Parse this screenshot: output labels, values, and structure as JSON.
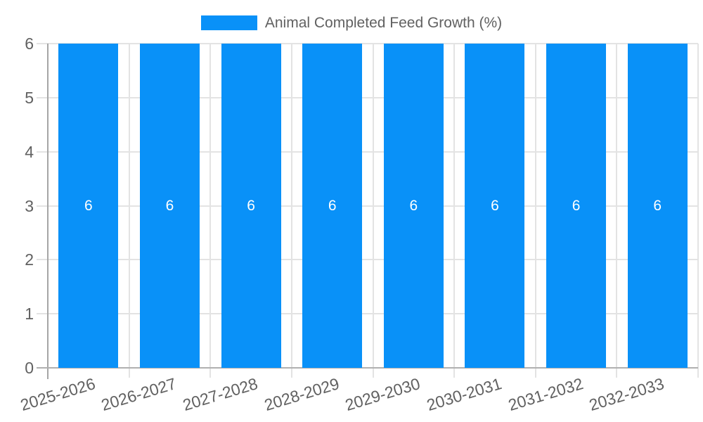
{
  "legend": {
    "label": "Animal Completed Feed Growth (%)"
  },
  "chart_data": {
    "type": "bar",
    "title": "",
    "xlabel": "",
    "ylabel": "",
    "categories": [
      "2025-2026",
      "2026-2027",
      "2027-2028",
      "2028-2029",
      "2029-2030",
      "2030-2031",
      "2031-2032",
      "2032-2033"
    ],
    "series": [
      {
        "name": "Animal Completed Feed Growth (%)",
        "values": [
          6,
          6,
          6,
          6,
          6,
          6,
          6,
          6
        ],
        "color": "#0991f8"
      }
    ],
    "bar_value_labels": [
      "6",
      "6",
      "6",
      "6",
      "6",
      "6",
      "6",
      "6"
    ],
    "ylim": [
      0,
      6
    ],
    "yticks": [
      0,
      1,
      2,
      3,
      4,
      5,
      6
    ],
    "grid": true,
    "legend_position": "top-center",
    "x_tick_rotation_deg": -17,
    "colors": {
      "bar": "#0991f8",
      "bar_label": "#ffffff",
      "gridline": "#e3e3e3",
      "axis_line": "#a6a6a6",
      "baseline": "#b0b0b0",
      "tick_label": "#616161",
      "legend_text": "#616161",
      "background": "#ffffff"
    }
  }
}
